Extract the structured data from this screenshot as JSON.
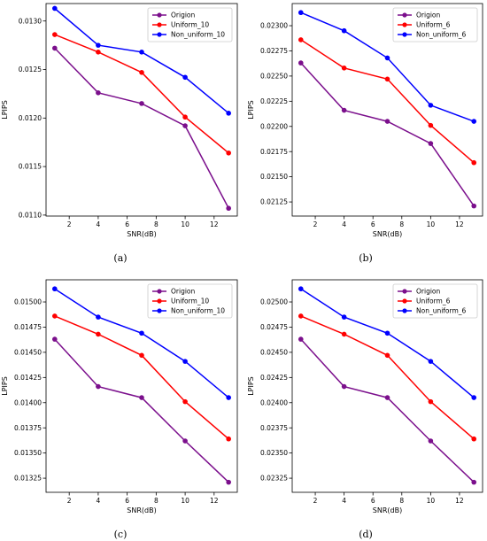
{
  "captions": [
    "(a)",
    "(b)",
    "(c)",
    "(d)"
  ],
  "colors": {
    "origion": "#7b0f8c",
    "uniform": "#ff0000",
    "nonuniform": "#0000ff"
  },
  "chart_data": [
    {
      "type": "line",
      "x": [
        1,
        4,
        7,
        10,
        13
      ],
      "xlabel": "SNR(dB)",
      "ylabel": "LPIPS",
      "xticks": [
        2,
        4,
        6,
        8,
        10,
        12
      ],
      "yticks": [
        0.011,
        0.0115,
        0.012,
        0.0125,
        0.013
      ],
      "ytick_labels": [
        "0.0110",
        "0.0115",
        "0.0120",
        "0.0125",
        "0.0130"
      ],
      "xlim": [
        0.4,
        13.6
      ],
      "ylim": [
        0.01099,
        0.01318
      ],
      "legend": "top-right",
      "series": [
        {
          "name": "Origion",
          "color": "#7b0f8c",
          "values": [
            0.01272,
            0.01226,
            0.01215,
            0.01192,
            0.01107
          ]
        },
        {
          "name": "Uniform_10",
          "color": "#ff0000",
          "values": [
            0.01286,
            0.01268,
            0.01247,
            0.01201,
            0.01164
          ]
        },
        {
          "name": "Non_uniform_10",
          "color": "#0000ff",
          "values": [
            0.01313,
            0.01275,
            0.01268,
            0.01242,
            0.01205
          ]
        }
      ]
    },
    {
      "type": "line",
      "x": [
        1,
        4,
        7,
        10,
        13
      ],
      "xlabel": "SNR(dB)",
      "ylabel": "LPIPS",
      "xticks": [
        2,
        4,
        6,
        8,
        10,
        12
      ],
      "yticks": [
        0.02125,
        0.0215,
        0.02175,
        0.022,
        0.02225,
        0.0225,
        0.02275,
        0.023
      ],
      "ytick_labels": [
        "0.02125",
        "0.02150",
        "0.02175",
        "0.02200",
        "0.02225",
        "0.02250",
        "0.02275",
        "0.02300"
      ],
      "xlim": [
        0.4,
        13.6
      ],
      "ylim": [
        0.02111,
        0.02322
      ],
      "legend": "top-right",
      "series": [
        {
          "name": "Origion",
          "color": "#7b0f8c",
          "values": [
            0.02263,
            0.02216,
            0.02205,
            0.02183,
            0.02121
          ]
        },
        {
          "name": "Uniform_6",
          "color": "#ff0000",
          "values": [
            0.02286,
            0.02258,
            0.02247,
            0.02201,
            0.02164
          ]
        },
        {
          "name": "Non_uniform_6",
          "color": "#0000ff",
          "values": [
            0.02313,
            0.02295,
            0.02268,
            0.02221,
            0.02205
          ]
        }
      ]
    },
    {
      "type": "line",
      "x": [
        1,
        4,
        7,
        10,
        13
      ],
      "xlabel": "SNR(dB)",
      "ylabel": "LPIPS",
      "xticks": [
        2,
        4,
        6,
        8,
        10,
        12
      ],
      "yticks": [
        0.01325,
        0.0135,
        0.01375,
        0.014,
        0.01425,
        0.0145,
        0.01475,
        0.015
      ],
      "ytick_labels": [
        "0.01325",
        "0.01350",
        "0.01375",
        "0.01400",
        "0.01425",
        "0.01450",
        "0.01475",
        "0.01500"
      ],
      "xlim": [
        0.4,
        13.6
      ],
      "ylim": [
        0.01311,
        0.01522
      ],
      "legend": "top-right",
      "series": [
        {
          "name": "Origion",
          "color": "#7b0f8c",
          "values": [
            0.01463,
            0.01416,
            0.01405,
            0.01362,
            0.01321
          ]
        },
        {
          "name": "Uniform_10",
          "color": "#ff0000",
          "values": [
            0.01486,
            0.01468,
            0.01447,
            0.01401,
            0.01364
          ]
        },
        {
          "name": "Non_uniform_10",
          "color": "#0000ff",
          "values": [
            0.01513,
            0.01485,
            0.01469,
            0.01441,
            0.01405
          ]
        }
      ]
    },
    {
      "type": "line",
      "x": [
        1,
        4,
        7,
        10,
        13
      ],
      "xlabel": "SNR(dB)",
      "ylabel": "LPIPS",
      "xticks": [
        2,
        4,
        6,
        8,
        10,
        12
      ],
      "yticks": [
        0.02325,
        0.0235,
        0.02375,
        0.024,
        0.02425,
        0.0245,
        0.02475,
        0.025
      ],
      "ytick_labels": [
        "0.02325",
        "0.02350",
        "0.02375",
        "0.02400",
        "0.02425",
        "0.02450",
        "0.02475",
        "0.02500"
      ],
      "xlim": [
        0.4,
        13.6
      ],
      "ylim": [
        0.02311,
        0.02522
      ],
      "legend": "top-right",
      "series": [
        {
          "name": "Origion",
          "color": "#7b0f8c",
          "values": [
            0.02463,
            0.02416,
            0.02405,
            0.02362,
            0.02321
          ]
        },
        {
          "name": "Uniform_6",
          "color": "#ff0000",
          "values": [
            0.02486,
            0.02468,
            0.02447,
            0.02401,
            0.02364
          ]
        },
        {
          "name": "Non_uniform_6",
          "color": "#0000ff",
          "values": [
            0.02513,
            0.02485,
            0.02469,
            0.02441,
            0.02405
          ]
        }
      ]
    }
  ]
}
